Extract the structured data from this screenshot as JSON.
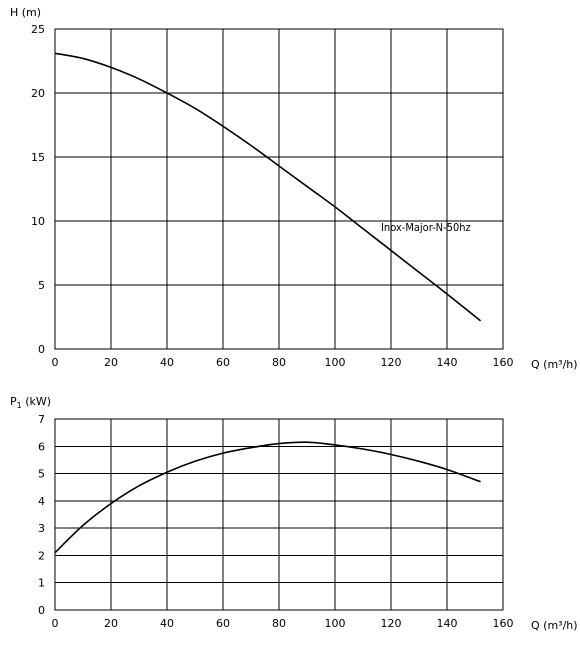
{
  "chart_data": [
    {
      "type": "line",
      "ylabel": "H (m)",
      "xlabel": "Q (m³/h)",
      "xlim": [
        0,
        160
      ],
      "ylim": [
        0,
        25
      ],
      "xticks": [
        0,
        20,
        40,
        60,
        80,
        100,
        120,
        140,
        160
      ],
      "yticks": [
        0,
        5,
        10,
        15,
        20,
        25
      ],
      "grid": true,
      "series": [
        {
          "name": "Inox-Major-N-50hz",
          "x": [
            0,
            10,
            20,
            30,
            40,
            50,
            60,
            70,
            80,
            90,
            100,
            110,
            120,
            130,
            140,
            152
          ],
          "y": [
            23.1,
            22.7,
            22.0,
            21.1,
            20.0,
            18.8,
            17.4,
            15.9,
            14.3,
            12.7,
            11.1,
            9.4,
            7.7,
            6.0,
            4.3,
            2.2
          ]
        }
      ]
    },
    {
      "type": "line",
      "ylabel": "P1 (kW)",
      "xlabel": "Q (m³/h)",
      "xlim": [
        0,
        160
      ],
      "ylim": [
        0,
        7
      ],
      "xticks": [
        0,
        20,
        40,
        60,
        80,
        100,
        120,
        140,
        160
      ],
      "yticks": [
        0,
        1,
        2,
        3,
        4,
        5,
        6,
        7
      ],
      "grid": true,
      "series": [
        {
          "x": [
            0,
            10,
            20,
            30,
            40,
            50,
            60,
            70,
            80,
            90,
            100,
            110,
            120,
            130,
            140,
            152
          ],
          "y": [
            2.1,
            3.1,
            3.9,
            4.55,
            5.05,
            5.45,
            5.75,
            5.95,
            6.1,
            6.15,
            6.05,
            5.9,
            5.7,
            5.45,
            5.15,
            4.7
          ]
        }
      ]
    }
  ]
}
